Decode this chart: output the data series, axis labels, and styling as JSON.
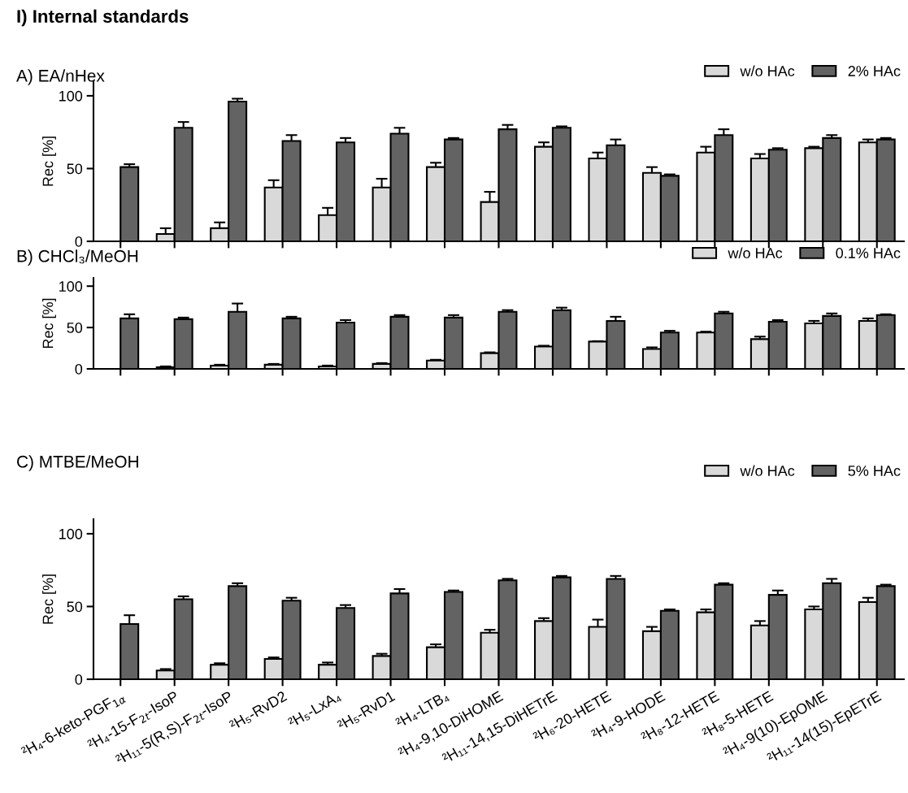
{
  "chart_data": [
    {
      "type": "bar",
      "title": "I) Internal standards",
      "subtitle": "A) EA/nHex",
      "ylabel": "Rec [%]",
      "categories": [
        null,
        null,
        null,
        null,
        null,
        null,
        null,
        null,
        null,
        null,
        null,
        null,
        null,
        null,
        null
      ],
      "series": [
        {
          "name": "w/o HAc",
          "color": "#d9d9d9",
          "values": [
            null,
            5,
            9,
            37,
            18,
            37,
            51,
            27,
            65,
            57,
            47,
            61,
            57,
            64,
            68
          ],
          "errors": [
            null,
            4,
            4,
            5,
            5,
            6,
            3,
            7,
            3,
            4,
            4,
            4,
            3,
            1,
            2
          ]
        },
        {
          "name": "2% HAc",
          "color": "#636363",
          "values": [
            51,
            78,
            96,
            69,
            68,
            74,
            70,
            77,
            78,
            66,
            45,
            73,
            63,
            71,
            70
          ],
          "errors": [
            2,
            4,
            2,
            4,
            3,
            4,
            1,
            3,
            1,
            4,
            1,
            4,
            1,
            2,
            1
          ]
        }
      ],
      "ylim": [
        0,
        110
      ],
      "yticks": [
        0,
        50,
        100
      ],
      "legend": "top right",
      "grid": false
    },
    {
      "type": "bar",
      "subtitle": "B) CHCl₃/MeOH",
      "ylabel": "Rec [%]",
      "categories": [
        null,
        null,
        null,
        null,
        null,
        null,
        null,
        null,
        null,
        null,
        null,
        null,
        null,
        null,
        null
      ],
      "series": [
        {
          "name": "w/o HAc",
          "color": "#d9d9d9",
          "values": [
            null,
            2,
            4,
            5,
            3,
            6,
            10,
            19,
            27,
            33,
            24,
            44,
            36,
            55,
            58
          ],
          "errors": [
            null,
            1,
            1,
            1,
            1,
            1,
            1,
            1,
            1,
            0.5,
            2,
            1,
            3,
            3,
            3
          ]
        },
        {
          "name": "0.1% HAc",
          "color": "#636363",
          "values": [
            61,
            60,
            69,
            61,
            56,
            63,
            62,
            69,
            71,
            58,
            44,
            67,
            57,
            64,
            65
          ],
          "errors": [
            5,
            2,
            10,
            2,
            3,
            2,
            3,
            2,
            3,
            5,
            2,
            2,
            2,
            3,
            1
          ]
        }
      ],
      "ylim": [
        0,
        110
      ],
      "yticks": [
        0,
        50,
        100
      ],
      "legend": "top right",
      "grid": false
    },
    {
      "type": "bar",
      "subtitle": "C) MTBE/MeOH",
      "ylabel": "Rec [%]",
      "categories": [
        "²H₄-6-keto-PGF$_{1α}$",
        "²H₄-15-F$_{2t}$-IsoP",
        "²H₁₁-5(R,S)-F$_{2t}$-IsoP",
        "²H₅-RvD2",
        "²H₅-LxA₄",
        "²H₅-RvD1",
        "²H₄-LTB₄",
        "²H₄-9,10-DiHOME",
        "²H₁₁-14,15-DiHETrE",
        "²H₆-20-HETE",
        "²H₄-9-HODE",
        "²H₈-12-HETE",
        "²H₈-5-HETE",
        "²H₄-9(10)-EpOME",
        "²H₁₁-14(15)-EpETrE"
      ],
      "series": [
        {
          "name": "w/o HAc",
          "color": "#d9d9d9",
          "values": [
            null,
            6,
            10,
            14,
            10,
            16,
            22,
            32,
            40,
            36,
            33,
            46,
            37,
            48,
            53
          ],
          "errors": [
            null,
            1,
            1,
            1,
            1.5,
            1.5,
            2,
            2,
            2,
            5,
            3,
            2,
            3,
            2,
            3
          ]
        },
        {
          "name": "5% HAc",
          "color": "#636363",
          "values": [
            38,
            55,
            64,
            54,
            49,
            59,
            60,
            68,
            70,
            69,
            47,
            65,
            58,
            66,
            64
          ],
          "errors": [
            6,
            2,
            2,
            2,
            2,
            3,
            1,
            1,
            1,
            2,
            1,
            1,
            3,
            3,
            1
          ]
        }
      ],
      "ylim": [
        0,
        110
      ],
      "yticks": [
        0,
        50,
        100
      ],
      "legend": "top right",
      "grid": false
    }
  ]
}
